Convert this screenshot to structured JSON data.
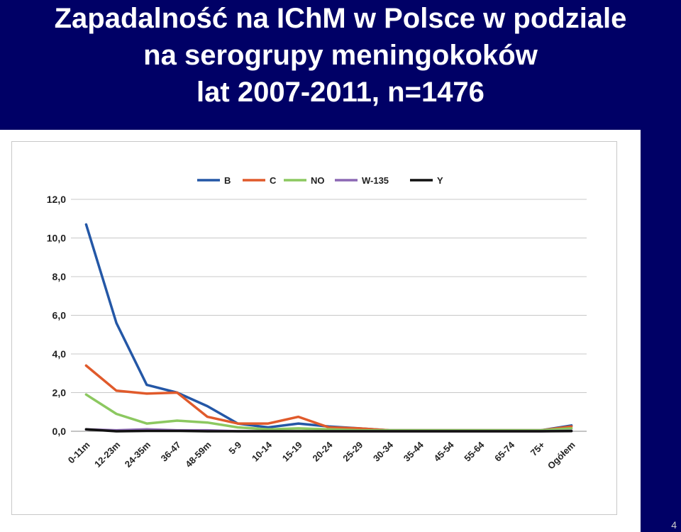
{
  "slide": {
    "title_lines": [
      "Zapadalność na IChM w Polsce w podziale",
      "na serogrupy meningokoków",
      "lat 2007-2011, n=1476"
    ],
    "page_number": "4"
  },
  "chart_data": {
    "type": "line",
    "categories": [
      "0-11m",
      "12-23m",
      "24-35m",
      "36-47",
      "48-59m",
      "5-9",
      "10-14",
      "15-19",
      "20-24",
      "25-29",
      "30-34",
      "35-44",
      "45-54",
      "55-64",
      "65-74",
      "75+",
      "Ogółem"
    ],
    "y_ticks": [
      "0,0",
      "2,0",
      "4,0",
      "6,0",
      "8,0",
      "10,0",
      "12,0"
    ],
    "ylim": [
      0,
      12
    ],
    "grid": true,
    "legend_position": "top",
    "series": [
      {
        "name": "B",
        "color": "#2457a6",
        "values": [
          10.7,
          5.6,
          2.4,
          2.0,
          1.3,
          0.4,
          0.2,
          0.4,
          0.25,
          0.15,
          0.05,
          0.05,
          0.05,
          0.05,
          0.05,
          0.05,
          0.3
        ]
      },
      {
        "name": "C",
        "color": "#e05a2b",
        "values": [
          3.4,
          2.1,
          1.95,
          2.0,
          0.75,
          0.4,
          0.4,
          0.75,
          0.2,
          0.15,
          0.05,
          0.05,
          0.05,
          0.05,
          0.05,
          0.05,
          0.25
        ]
      },
      {
        "name": "NO",
        "color": "#8cc860",
        "values": [
          1.9,
          0.9,
          0.4,
          0.55,
          0.45,
          0.2,
          0.1,
          0.15,
          0.1,
          0.05,
          0.05,
          0.05,
          0.05,
          0.05,
          0.05,
          0.05,
          0.15
        ]
      },
      {
        "name": "W-135",
        "color": "#8c68b4",
        "values": [
          0.1,
          0.05,
          0.1,
          0.05,
          0.05,
          0.0,
          0.0,
          0.0,
          0.0,
          0.0,
          0.0,
          0.0,
          0.0,
          0.0,
          0.0,
          0.0,
          0.03
        ]
      },
      {
        "name": "Y",
        "color": "#111111",
        "values": [
          0.1,
          0.0,
          0.02,
          0.02,
          0.0,
          0.0,
          0.0,
          0.0,
          0.0,
          0.0,
          0.0,
          0.0,
          0.0,
          0.0,
          0.0,
          0.0,
          0.01
        ]
      }
    ]
  }
}
